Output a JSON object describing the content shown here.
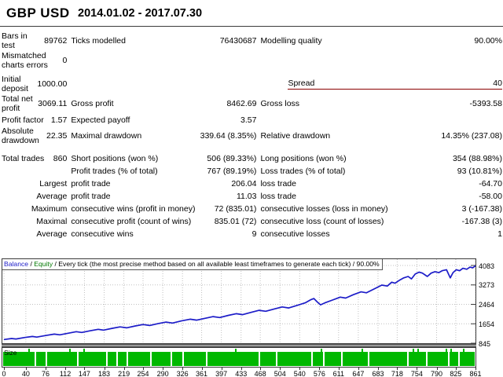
{
  "header": {
    "symbol": "GBP USD",
    "date_range": "2014.01.02 - 2017.07.30"
  },
  "colors": {
    "balance_line": "#1c1cc8",
    "equity_label": "#007800",
    "size_bars": "#00b800",
    "spread_underline": "#8b0000",
    "grid": "#c0c0c0",
    "axis": "#3a3a3a"
  },
  "stats": {
    "rows": [
      {
        "c1l": "Bars in test",
        "c1v": "89762",
        "c2l": "Ticks modelled",
        "c2v": "76430687",
        "c3l": "Modelling quality",
        "c3v": "90.00%"
      },
      {
        "c1l": "Mismatched charts errors",
        "c1v": "0",
        "c2l": "",
        "c2v": "",
        "c3l": "",
        "c3v": ""
      },
      {
        "c1l": "Initial deposit",
        "c1v": "1000.00",
        "c2l": "",
        "c2v": "",
        "c3l": "Spread",
        "c3v": "40",
        "spread": true,
        "gap_before": 6
      },
      {
        "c1l": "Total net profit",
        "c1v": "3069.11",
        "c2l": "Gross profit",
        "c2v": "8462.69",
        "c3l": "Gross loss",
        "c3v": "-5393.58"
      },
      {
        "c1l": "Profit factor",
        "c1v": "1.57",
        "c2l": "Expected payoff",
        "c2v": "3.57",
        "c3l": "",
        "c3v": ""
      },
      {
        "c1l": "Absolute drawdown",
        "c1v": "22.35",
        "c2l": "Maximal drawdown",
        "c2v": "339.64 (8.35%)",
        "c3l": "Relative drawdown",
        "c3v": "14.35% (237.08)"
      },
      {
        "c1l": "Total trades",
        "c1v": "860",
        "c2l": "Short positions (won %)",
        "c2v": "506 (89.33%)",
        "c3l": "Long positions (won %)",
        "c3v": "354 (88.98%)",
        "gap_before": 9
      },
      {
        "c1l": "",
        "c1v": "",
        "c2l": "Profit trades (% of total)",
        "c2v": "767 (89.19%)",
        "c3l": "Loss trades (% of total)",
        "c3v": "93 (10.81%)"
      },
      {
        "c1l": "",
        "c1v": "Largest",
        "c2l": "profit trade",
        "c2v": "206.04",
        "c3l": "loss trade",
        "c3v": "-64.70"
      },
      {
        "c1l": "",
        "c1v": "Average",
        "c2l": "profit trade",
        "c2v": "11.03",
        "c3l": "loss trade",
        "c3v": "-58.00"
      },
      {
        "c1l": "",
        "c1v": "Maximum",
        "c2l": "consecutive wins (profit in money)",
        "c2v": "72 (835.01)",
        "c3l": "consecutive losses (loss in money)",
        "c3v": "3 (-167.38)"
      },
      {
        "c1l": "",
        "c1v": "Maximal",
        "c2l": "consecutive profit (count of wins)",
        "c2v": "835.01 (72)",
        "c3l": "consecutive loss (count of losses)",
        "c3v": "-167.38 (3)"
      },
      {
        "c1l": "",
        "c1v": "Average",
        "c2l": "consecutive wins",
        "c2v": "9",
        "c3l": "consecutive losses",
        "c3v": "1"
      }
    ]
  },
  "graph": {
    "legend": {
      "balance_label": "Balance",
      "sep1": " / ",
      "equity_label": "Equity",
      "sep2": " / ",
      "method_text": "Every tick (the most precise method based on all available least timeframes to generate each tick) / 90.00%"
    },
    "y_axis_labels": [
      4083,
      3273,
      2464,
      1654,
      845
    ],
    "x_axis_labels": [
      0,
      40,
      76,
      112,
      147,
      183,
      219,
      254,
      290,
      326,
      361,
      397,
      433,
      468,
      504,
      540,
      576,
      611,
      647,
      683,
      718,
      754,
      790,
      825,
      861
    ],
    "axis_ranges": {
      "x_min": 0,
      "x_max": 861,
      "y_min": 845,
      "y_top_label": 4083
    },
    "chart_data": {
      "type": "line",
      "series_name": "Balance",
      "x_label_meaning": "trade number",
      "balance_curve": [
        [
          0,
          1000
        ],
        [
          14,
          1040
        ],
        [
          22,
          1022
        ],
        [
          38,
          1085
        ],
        [
          52,
          1125
        ],
        [
          60,
          1100
        ],
        [
          76,
          1165
        ],
        [
          92,
          1225
        ],
        [
          102,
          1195
        ],
        [
          118,
          1265
        ],
        [
          132,
          1325
        ],
        [
          142,
          1292
        ],
        [
          158,
          1365
        ],
        [
          172,
          1425
        ],
        [
          182,
          1392
        ],
        [
          198,
          1465
        ],
        [
          212,
          1525
        ],
        [
          224,
          1485
        ],
        [
          240,
          1565
        ],
        [
          254,
          1625
        ],
        [
          266,
          1585
        ],
        [
          282,
          1665
        ],
        [
          296,
          1725
        ],
        [
          308,
          1685
        ],
        [
          324,
          1775
        ],
        [
          340,
          1845
        ],
        [
          352,
          1805
        ],
        [
          368,
          1885
        ],
        [
          382,
          1955
        ],
        [
          394,
          1915
        ],
        [
          410,
          2005
        ],
        [
          424,
          2075
        ],
        [
          436,
          2035
        ],
        [
          452,
          2135
        ],
        [
          466,
          2215
        ],
        [
          478,
          2175
        ],
        [
          494,
          2275
        ],
        [
          508,
          2355
        ],
        [
          520,
          2315
        ],
        [
          536,
          2425
        ],
        [
          550,
          2525
        ],
        [
          560,
          2655
        ],
        [
          566,
          2705
        ],
        [
          572,
          2565
        ],
        [
          578,
          2445
        ],
        [
          586,
          2525
        ],
        [
          600,
          2645
        ],
        [
          614,
          2765
        ],
        [
          624,
          2725
        ],
        [
          638,
          2865
        ],
        [
          652,
          2985
        ],
        [
          662,
          2945
        ],
        [
          676,
          3105
        ],
        [
          690,
          3265
        ],
        [
          700,
          3225
        ],
        [
          708,
          3385
        ],
        [
          714,
          3345
        ],
        [
          722,
          3465
        ],
        [
          730,
          3565
        ],
        [
          738,
          3625
        ],
        [
          744,
          3525
        ],
        [
          751,
          3725
        ],
        [
          758,
          3805
        ],
        [
          764,
          3765
        ],
        [
          773,
          3625
        ],
        [
          780,
          3765
        ],
        [
          787,
          3825
        ],
        [
          794,
          3785
        ],
        [
          800,
          3865
        ],
        [
          808,
          3905
        ],
        [
          815,
          3565
        ],
        [
          820,
          3785
        ],
        [
          826,
          3905
        ],
        [
          832,
          3865
        ],
        [
          838,
          3965
        ],
        [
          845,
          3925
        ],
        [
          851,
          4015
        ],
        [
          856,
          3985
        ],
        [
          861,
          4069
        ]
      ]
    },
    "size_pane": {
      "label": "Size",
      "spike_trades": [
        46,
        121,
        146,
        424,
        580,
        654,
        748,
        756,
        808,
        816,
        839
      ],
      "gap_trades": [
        58,
        78,
        135,
        188,
        207,
        226,
        268,
        306,
        327,
        370,
        466,
        498,
        563,
        584,
        617,
        666,
        738,
        772,
        812,
        831
      ]
    }
  }
}
